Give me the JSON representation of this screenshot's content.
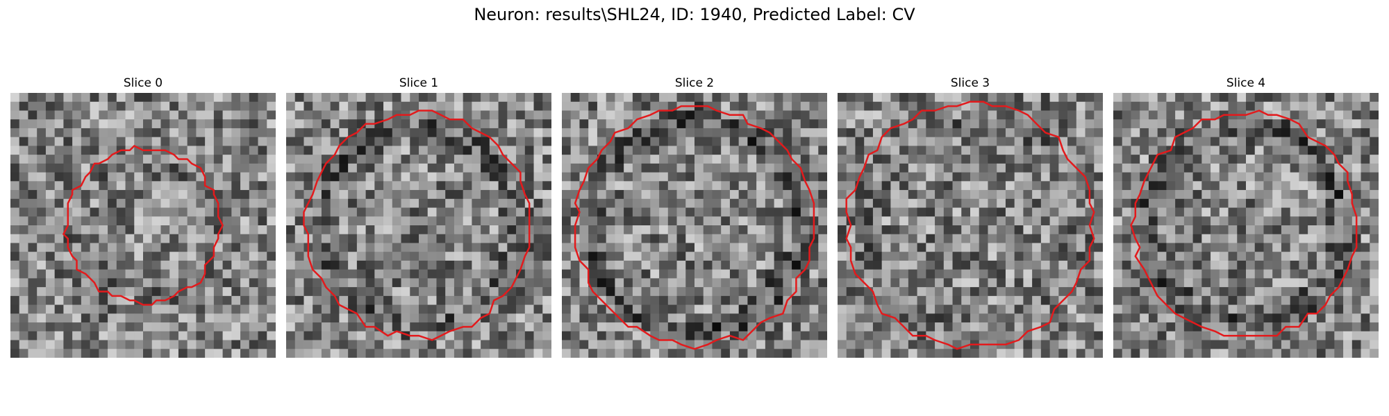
{
  "figure": {
    "title": "Neuron: results\\SHL24, ID: 1940, Predicted Label: CV"
  },
  "panels": [
    {
      "title": "Slice 0",
      "contour_radius": 0.29,
      "seed": 11,
      "dark_ring": 0.05
    },
    {
      "title": "Slice 1",
      "contour_radius": 0.42,
      "seed": 23,
      "dark_ring": 0.15
    },
    {
      "title": "Slice 2",
      "contour_radius": 0.45,
      "seed": 37,
      "dark_ring": 0.22
    },
    {
      "title": "Slice 3",
      "contour_radius": 0.46,
      "seed": 41,
      "dark_ring": 0.08
    },
    {
      "title": "Slice 4",
      "contour_radius": 0.42,
      "seed": 53,
      "dark_ring": 0.18
    }
  ],
  "style": {
    "contour_color": "#e31a1c",
    "colormap": "gray"
  }
}
